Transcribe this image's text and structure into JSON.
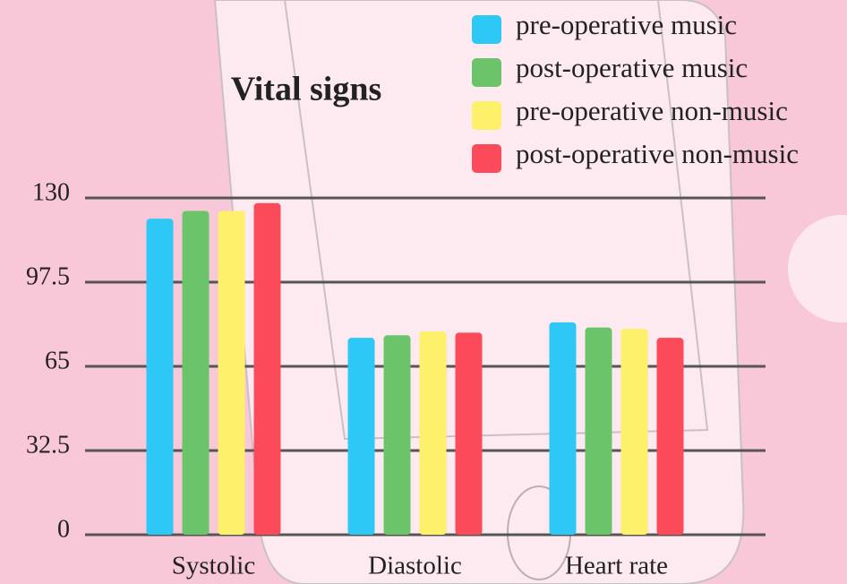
{
  "chart_data": {
    "type": "bar",
    "title": "Vital signs",
    "categories": [
      "Systolic",
      "Diastolic",
      "Heart rate"
    ],
    "series": [
      {
        "name": "pre-operative music",
        "color": "#2ec8f6",
        "values": [
          122,
          76,
          82
        ]
      },
      {
        "name": "post-operative music",
        "color": "#6cc46a",
        "values": [
          125,
          77,
          80
        ]
      },
      {
        "name": "pre-operative non-music",
        "color": "#fdf06a",
        "values": [
          125,
          78.5,
          79.5
        ]
      },
      {
        "name": "post-operative non-music",
        "color": "#fb4a5a",
        "values": [
          128,
          78,
          76
        ]
      }
    ],
    "ylim": [
      0,
      130
    ],
    "yticks": [
      0,
      32.5,
      65,
      97.5,
      130
    ],
    "grid": true,
    "legend": "top-right"
  }
}
